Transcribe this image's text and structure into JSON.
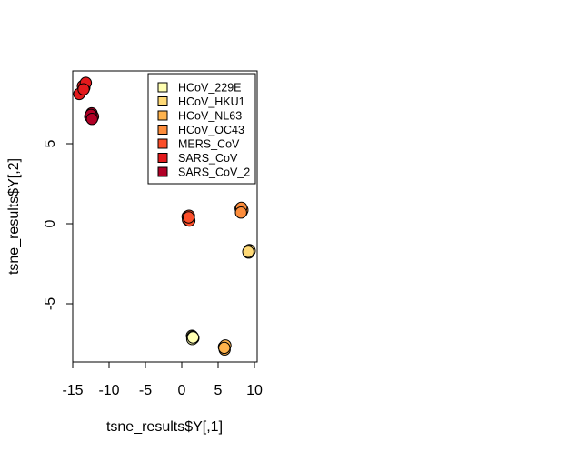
{
  "chart_data": {
    "type": "scatter",
    "title": "",
    "xlabel": "tsne_results$Y[,1]",
    "ylabel": "tsne_results$Y[,2]",
    "xlim": [
      -15,
      10
    ],
    "ylim": [
      -8.5,
      9.5
    ],
    "x_ticks": [
      -15,
      -10,
      -5,
      0,
      5,
      10
    ],
    "x_tick_labels": [
      "-15",
      "-10",
      "-5",
      "0",
      "5",
      "10"
    ],
    "y_ticks": [
      -5,
      0,
      5
    ],
    "y_tick_labels": [
      "-5",
      "0",
      "5"
    ],
    "grid": false,
    "legend_position": "top-right",
    "series": [
      {
        "name": "HCoV_229E",
        "color": "#FFFFB2",
        "points": [
          [
            1.4,
            -7.0
          ],
          [
            1.6,
            -7.15
          ],
          [
            1.5,
            -7.05
          ],
          [
            1.45,
            -7.2
          ],
          [
            1.55,
            -7.1
          ]
        ]
      },
      {
        "name": "HCoV_HKU1",
        "color": "#FED976",
        "points": [
          [
            9.3,
            -1.65
          ],
          [
            9.2,
            -1.8
          ],
          [
            9.35,
            -1.7
          ],
          [
            9.15,
            -1.75
          ]
        ]
      },
      {
        "name": "HCoV_NL63",
        "color": "#FEB24C",
        "points": [
          [
            5.8,
            -7.7
          ],
          [
            5.9,
            -7.85
          ],
          [
            6.0,
            -7.6
          ],
          [
            5.85,
            -7.75
          ]
        ]
      },
      {
        "name": "HCoV_OC43",
        "color": "#FD8D3C",
        "points": [
          [
            8.1,
            0.95
          ],
          [
            8.3,
            0.9
          ],
          [
            8.25,
            0.75
          ],
          [
            8.35,
            0.85
          ],
          [
            8.2,
            1.0
          ],
          [
            8.15,
            0.7
          ]
        ]
      },
      {
        "name": "MERS_CoV",
        "color": "#FC4E2A",
        "points": [
          [
            0.8,
            0.45
          ],
          [
            0.9,
            0.3
          ],
          [
            1.0,
            0.5
          ],
          [
            0.85,
            0.25
          ],
          [
            1.05,
            0.2
          ],
          [
            0.95,
            0.4
          ]
        ]
      },
      {
        "name": "SARS_CoV",
        "color": "#E31A1C",
        "points": [
          [
            -14.1,
            8.1
          ],
          [
            -13.6,
            8.6
          ],
          [
            -13.4,
            8.5
          ],
          [
            -13.2,
            8.8
          ],
          [
            -13.5,
            8.4
          ]
        ]
      },
      {
        "name": "SARS_CoV_2",
        "color": "#B10026",
        "points": [
          [
            -12.6,
            6.7
          ],
          [
            -12.3,
            6.6
          ],
          [
            -12.4,
            6.9
          ],
          [
            -12.2,
            6.7
          ],
          [
            -12.5,
            6.8
          ],
          [
            -12.35,
            6.55
          ]
        ]
      }
    ]
  }
}
